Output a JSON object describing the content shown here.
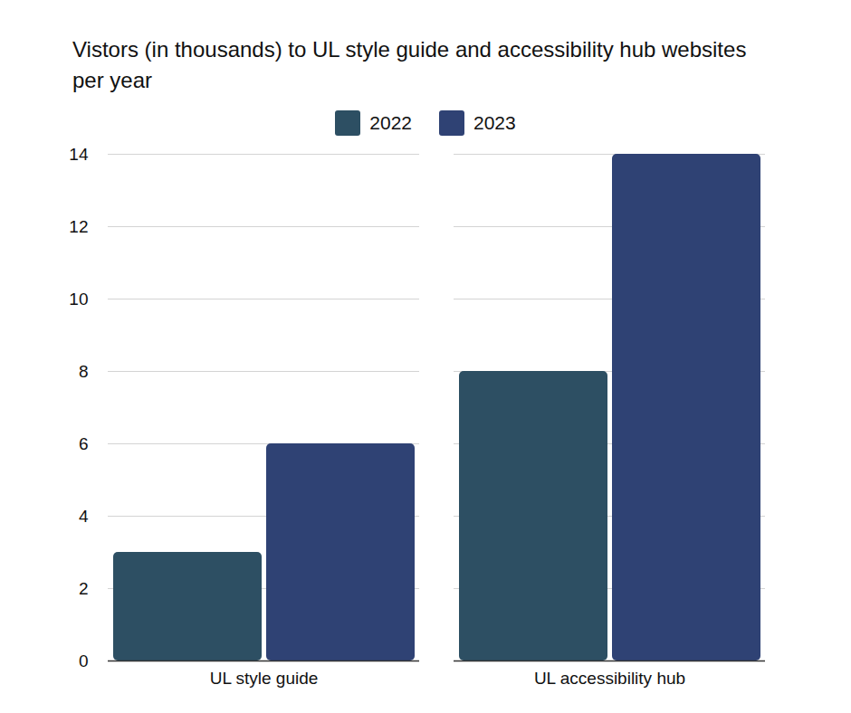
{
  "chart_data": {
    "type": "bar",
    "title": "Vistors (in thousands) to UL style guide and accessibility hub websites per year",
    "categories": [
      "UL style guide",
      "UL accessibility hub"
    ],
    "series": [
      {
        "name": "2022",
        "color": "#2d4f63",
        "values": [
          3,
          8
        ]
      },
      {
        "name": "2023",
        "color": "#2f4274",
        "values": [
          6,
          14
        ]
      }
    ],
    "ylim": [
      0,
      14
    ],
    "yticks": [
      0,
      2,
      4,
      6,
      8,
      10,
      12,
      14
    ],
    "grid": true,
    "legend": "top"
  }
}
